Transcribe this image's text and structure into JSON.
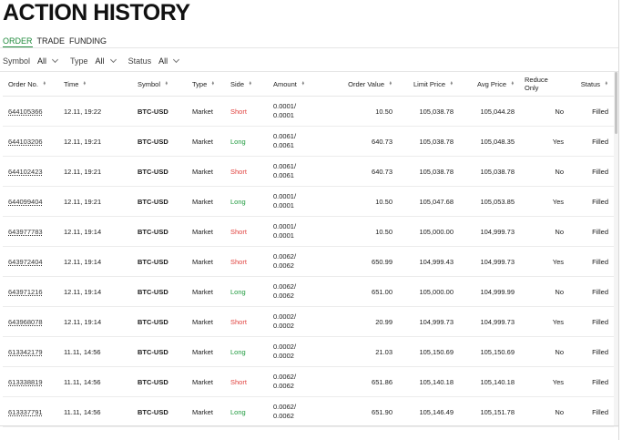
{
  "page": {
    "title": "ACTION HISTORY"
  },
  "tabs": [
    {
      "label": "ORDER",
      "active": true
    },
    {
      "label": "TRADE",
      "active": false
    },
    {
      "label": "FUNDING",
      "active": false
    }
  ],
  "filters": [
    {
      "label": "Symbol",
      "value": "All"
    },
    {
      "label": "Type",
      "value": "All"
    },
    {
      "label": "Status",
      "value": "All"
    }
  ],
  "columns": [
    "Order No.",
    "Time",
    "Symbol",
    "Type",
    "Side",
    "Amount",
    "Order Value",
    "Limit Price",
    "Avg Price",
    "Reduce Only",
    "Status"
  ],
  "colors": {
    "long": "#1f9a3e",
    "short": "#e0413d",
    "active_tab": "#1f8a3b"
  },
  "rows": [
    {
      "order_no": "644105366",
      "time": "12.11, 19:22",
      "symbol": "BTC-USD",
      "type": "Market",
      "side": "Short",
      "amount": "0.0001/ 0.0001",
      "order_value": "10.50",
      "limit_price": "105,038.78",
      "avg_price": "105,044.28",
      "reduce_only": "No",
      "status": "Filled"
    },
    {
      "order_no": "644103206",
      "time": "12.11, 19:21",
      "symbol": "BTC-USD",
      "type": "Market",
      "side": "Long",
      "amount": "0.0061/ 0.0061",
      "order_value": "640.73",
      "limit_price": "105,038.78",
      "avg_price": "105,048.35",
      "reduce_only": "Yes",
      "status": "Filled"
    },
    {
      "order_no": "644102423",
      "time": "12.11, 19:21",
      "symbol": "BTC-USD",
      "type": "Market",
      "side": "Short",
      "amount": "0.0061/ 0.0061",
      "order_value": "640.73",
      "limit_price": "105,038.78",
      "avg_price": "105,038.78",
      "reduce_only": "No",
      "status": "Filled"
    },
    {
      "order_no": "644099404",
      "time": "12.11, 19:21",
      "symbol": "BTC-USD",
      "type": "Market",
      "side": "Long",
      "amount": "0.0001/ 0.0001",
      "order_value": "10.50",
      "limit_price": "105,047.68",
      "avg_price": "105,053.85",
      "reduce_only": "Yes",
      "status": "Filled"
    },
    {
      "order_no": "643977783",
      "time": "12.11, 19:14",
      "symbol": "BTC-USD",
      "type": "Market",
      "side": "Short",
      "amount": "0.0001/ 0.0001",
      "order_value": "10.50",
      "limit_price": "105,000.00",
      "avg_price": "104,999.73",
      "reduce_only": "No",
      "status": "Filled"
    },
    {
      "order_no": "643972404",
      "time": "12.11, 19:14",
      "symbol": "BTC-USD",
      "type": "Market",
      "side": "Short",
      "amount": "0.0062/ 0.0062",
      "order_value": "650.99",
      "limit_price": "104,999.43",
      "avg_price": "104,999.73",
      "reduce_only": "Yes",
      "status": "Filled"
    },
    {
      "order_no": "643971216",
      "time": "12.11, 19:14",
      "symbol": "BTC-USD",
      "type": "Market",
      "side": "Long",
      "amount": "0.0062/ 0.0062",
      "order_value": "651.00",
      "limit_price": "105,000.00",
      "avg_price": "104,999.99",
      "reduce_only": "No",
      "status": "Filled"
    },
    {
      "order_no": "643968078",
      "time": "12.11, 19:14",
      "symbol": "BTC-USD",
      "type": "Market",
      "side": "Short",
      "amount": "0.0002/ 0.0002",
      "order_value": "20.99",
      "limit_price": "104,999.73",
      "avg_price": "104,999.73",
      "reduce_only": "Yes",
      "status": "Filled"
    },
    {
      "order_no": "613342179",
      "time": "11.11, 14:56",
      "symbol": "BTC-USD",
      "type": "Market",
      "side": "Long",
      "amount": "0.0002/ 0.0002",
      "order_value": "21.03",
      "limit_price": "105,150.69",
      "avg_price": "105,150.69",
      "reduce_only": "No",
      "status": "Filled"
    },
    {
      "order_no": "613338819",
      "time": "11.11, 14:56",
      "symbol": "BTC-USD",
      "type": "Market",
      "side": "Short",
      "amount": "0.0062/ 0.0062",
      "order_value": "651.86",
      "limit_price": "105,140.18",
      "avg_price": "105,140.18",
      "reduce_only": "Yes",
      "status": "Filled"
    },
    {
      "order_no": "613337791",
      "time": "11.11, 14:56",
      "symbol": "BTC-USD",
      "type": "Market",
      "side": "Long",
      "amount": "0.0062/ 0.0062",
      "order_value": "651.90",
      "limit_price": "105,146.49",
      "avg_price": "105,151.78",
      "reduce_only": "No",
      "status": "Filled"
    }
  ]
}
